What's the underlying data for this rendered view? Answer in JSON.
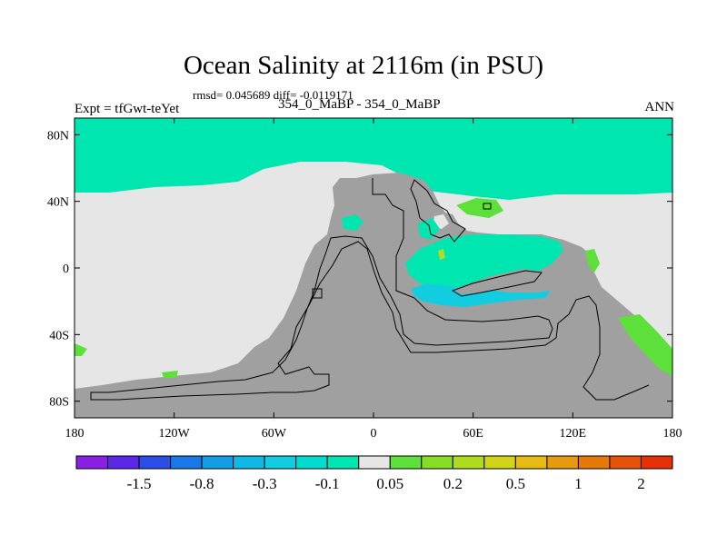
{
  "figure": {
    "title": "Ocean Salinity at 2116m (in PSU)",
    "stats": "rmsd= 0.045689 diff= -0.0119171",
    "subtitle": "354_0_MaBP - 354_0_MaBP",
    "left_label": "Expt = tfGwt-teYet",
    "right_label": "ANN"
  },
  "map": {
    "lat_ticks": [
      "80N",
      "40N",
      "0",
      "40S",
      "80S"
    ],
    "lat_values": [
      80,
      40,
      0,
      -40,
      -80
    ],
    "lon_ticks": [
      "180",
      "120W",
      "60W",
      "0",
      "60E",
      "120E",
      "180"
    ],
    "lon_values": [
      -180,
      -120,
      -60,
      0,
      60,
      120,
      180
    ],
    "lon_range": [
      -180,
      180
    ],
    "lat_range": [
      -90,
      90
    ],
    "colors": {
      "land": "#a0a0a0",
      "near_zero": "#e6e6e6",
      "neg_small": "#00e6b0",
      "neg_mid": "#00ccd0",
      "pos_small": "#5ee03a",
      "pos_mid": "#9ee020"
    }
  },
  "colorbar": {
    "colors": [
      "#8a1fe6",
      "#5a28e6",
      "#2a4ee6",
      "#1a78e6",
      "#129ee6",
      "#10b8e6",
      "#12cce0",
      "#00dcd0",
      "#00e6b0",
      "#e6e6e6",
      "#5ee03a",
      "#88de26",
      "#b0dc20",
      "#d2d41a",
      "#e6bc14",
      "#e69a10",
      "#e6780c",
      "#e6540a",
      "#e63008"
    ],
    "labels": [
      "-1.5",
      "-0.8",
      "-0.3",
      "-0.1",
      "0.05",
      "0.2",
      "0.5",
      "1",
      "2"
    ]
  }
}
